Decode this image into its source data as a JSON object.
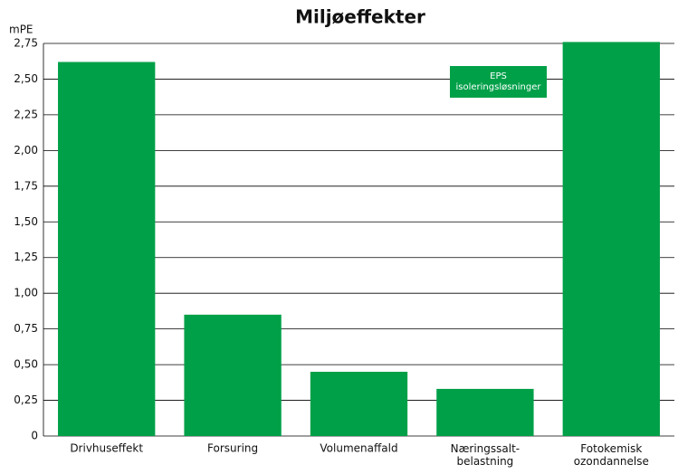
{
  "chart_data": {
    "type": "bar",
    "title": "Miljøeffekter",
    "y_label": "mPE",
    "categories": [
      "Drivhuseffekt",
      "Forsuring",
      "Volumenaffald",
      "Næringssalt- belastning",
      "Fotokemisk ozondannelse"
    ],
    "series": [
      {
        "name": "EPS isoleringsløsninger",
        "color": "#00a048",
        "values": [
          2.62,
          0.85,
          0.45,
          0.33,
          2.76
        ]
      }
    ],
    "ylim": [
      0,
      2.75
    ],
    "yticks": [
      0,
      {
        "value": 0.25,
        "label": "0,25"
      },
      {
        "value": 0.5,
        "label": "0,50"
      },
      {
        "value": 0.75,
        "label": "0,75"
      },
      {
        "value": 1,
        "label": "1,00"
      },
      {
        "value": 1.25,
        "label": "1,25"
      },
      {
        "value": 1.5,
        "label": "1,50"
      },
      {
        "value": 1.75,
        "label": "1,75"
      },
      {
        "value": 2,
        "label": "2,00"
      },
      {
        "value": 2.25,
        "label": "2,25"
      },
      {
        "value": 2.5,
        "label": "2,50"
      },
      {
        "value": 2.75,
        "label": "2,75"
      }
    ],
    "grid": true,
    "legend": "upper right"
  }
}
